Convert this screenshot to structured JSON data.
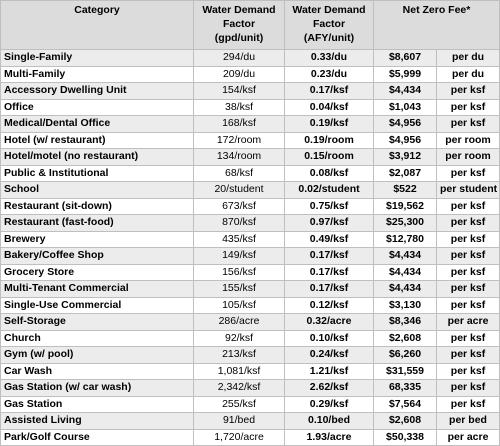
{
  "headers": {
    "category": "Category",
    "gpd": [
      "Water Demand",
      "Factor",
      "(gpd/unit)"
    ],
    "afy": [
      "Water Demand",
      "Factor",
      "(AFY/unit)"
    ],
    "fee": "Net Zero Fee*"
  },
  "rows": [
    {
      "category": "Single-Family",
      "gpd": "294/du",
      "afy": "0.33/du",
      "fee": "$8,607",
      "unit": "per du"
    },
    {
      "category": "Multi-Family",
      "gpd": "209/du",
      "afy": "0.23/du",
      "fee": "$5,999",
      "unit": "per du"
    },
    {
      "category": "Accessory Dwelling Unit",
      "gpd": "154/ksf",
      "afy": "0.17/ksf",
      "fee": "$4,434",
      "unit": "per ksf"
    },
    {
      "category": "Office",
      "gpd": "38/ksf",
      "afy": "0.04/ksf",
      "fee": "$1,043",
      "unit": "per ksf"
    },
    {
      "category": "Medical/Dental Office",
      "gpd": "168/ksf",
      "afy": "0.19/ksf",
      "fee": "$4,956",
      "unit": "per ksf"
    },
    {
      "category": "Hotel (w/ restaurant)",
      "gpd": "172/room",
      "afy": "0.19/room",
      "fee": "$4,956",
      "unit": "per room"
    },
    {
      "category": "Hotel/motel (no restaurant)",
      "gpd": "134/room",
      "afy": "0.15/room",
      "fee": "$3,912",
      "unit": "per room"
    },
    {
      "category": "Public & Institutional",
      "gpd": "68/ksf",
      "afy": "0.08/ksf",
      "fee": "$2,087",
      "unit": "per ksf"
    },
    {
      "category": "School",
      "gpd": "20/student",
      "afy": "0.02/student",
      "fee": "$522",
      "unit": "per student"
    },
    {
      "category": "Restaurant (sit-down)",
      "gpd": "673/ksf",
      "afy": "0.75/ksf",
      "fee": "$19,562",
      "unit": "per ksf"
    },
    {
      "category": "Restaurant (fast-food)",
      "gpd": "870/ksf",
      "afy": "0.97/ksf",
      "fee": "$25,300",
      "unit": "per ksf"
    },
    {
      "category": "Brewery",
      "gpd": "435/ksf",
      "afy": "0.49/ksf",
      "fee": "$12,780",
      "unit": "per ksf"
    },
    {
      "category": "Bakery/Coffee Shop",
      "gpd": "149/ksf",
      "afy": "0.17/ksf",
      "fee": "$4,434",
      "unit": "per ksf"
    },
    {
      "category": "Grocery Store",
      "gpd": "156/ksf",
      "afy": "0.17/ksf",
      "fee": "$4,434",
      "unit": "per ksf"
    },
    {
      "category": "Multi-Tenant Commercial",
      "gpd": "155/ksf",
      "afy": "0.17/ksf",
      "fee": "$4,434",
      "unit": "per ksf"
    },
    {
      "category": "Single-Use Commercial",
      "gpd": "105/ksf",
      "afy": "0.12/ksf",
      "fee": "$3,130",
      "unit": "per ksf"
    },
    {
      "category": "Self-Storage",
      "gpd": "286/acre",
      "afy": "0.32/acre",
      "fee": "$8,346",
      "unit": "per acre"
    },
    {
      "category": "Church",
      "gpd": "92/ksf",
      "afy": "0.10/ksf",
      "fee": "$2,608",
      "unit": "per ksf"
    },
    {
      "category": "Gym (w/ pool)",
      "gpd": "213/ksf",
      "afy": "0.24/ksf",
      "fee": "$6,260",
      "unit": "per ksf"
    },
    {
      "category": "Car Wash",
      "gpd": "1,081/ksf",
      "afy": "1.21/ksf",
      "fee": "$31,559",
      "unit": "per ksf"
    },
    {
      "category": "Gas Station (w/ car wash)",
      "gpd": "2,342/ksf",
      "afy": "2.62/ksf",
      "fee": "68,335",
      "unit": "per ksf"
    },
    {
      "category": "Gas Station",
      "gpd": "255/ksf",
      "afy": "0.29/ksf",
      "fee": "$7,564",
      "unit": "per ksf"
    },
    {
      "category": "Assisted Living",
      "gpd": "91/bed",
      "afy": "0.10/bed",
      "fee": "$2,608",
      "unit": "per bed"
    },
    {
      "category": "Park/Golf Course",
      "gpd": "1,720/acre",
      "afy": "1.93/acre",
      "fee": "$50,338",
      "unit": "per acre"
    }
  ]
}
